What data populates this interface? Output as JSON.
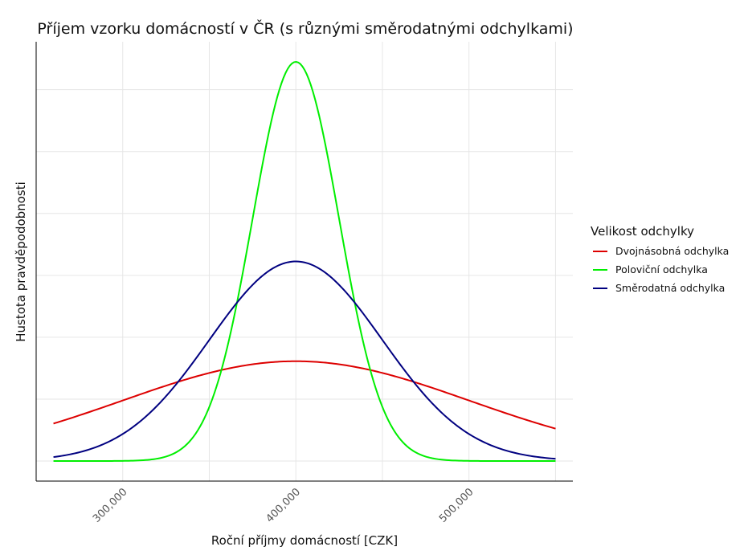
{
  "chart_data": {
    "type": "line",
    "title": "Příjem vzorku domácností v ČR (s různými směrodatnými odchylkami)",
    "xlabel": "Roční příjmy domácností [CZK]",
    "ylabel": "Hustota pravděpodobnosti",
    "x_ticks": [
      300000,
      400000,
      500000
    ],
    "x_tick_labels": [
      "300,000",
      "400,000",
      "500,000"
    ],
    "xlim": [
      250000,
      560000
    ],
    "y_tick_labels_shown": false,
    "grid": true,
    "legend": {
      "title": "Velikost odchylky",
      "placement": "right"
    },
    "series": [
      {
        "name": "Dvojnásobná odchylka",
        "color": "#dd0000",
        "mean": 400000,
        "sd": 100000,
        "relative_peak": 0.25
      },
      {
        "name": "Poloviční odchylka",
        "color": "#00ee00",
        "mean": 400000,
        "sd": 25000,
        "relative_peak": 1.0
      },
      {
        "name": "Směrodatná odchylka",
        "color": "#000080",
        "mean": 400000,
        "sd": 50000,
        "relative_peak": 0.5
      }
    ],
    "x_range_plotted": [
      260000,
      550000
    ]
  }
}
